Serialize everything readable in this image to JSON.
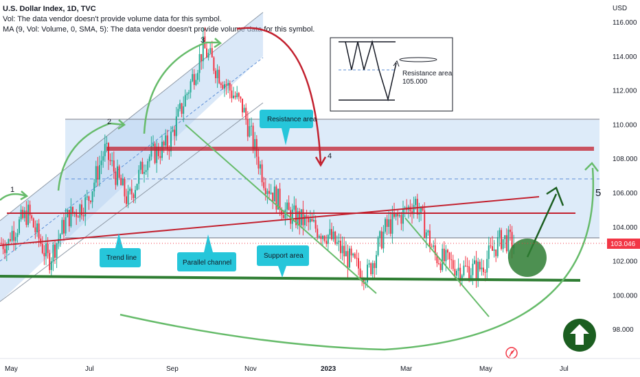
{
  "header": {
    "title": "U.S. Dollar Index, 1D, TVC",
    "volume_note": "Vol: The data vendor doesn't provide volume data for this symbol.",
    "ma_note": "MA (9, Vol: Volume, 0, SMA, 5): The data vendor doesn't provide volume data for this symbol."
  },
  "price_axis": {
    "currency": "USD",
    "ticks": [
      "116.000",
      "114.000",
      "112.000",
      "110.000",
      "108.000",
      "106.000",
      "104.000",
      "102.000",
      "100.000",
      "98.000"
    ],
    "last_price": "103.046",
    "last_price_color": "#f23645"
  },
  "time_axis": {
    "labels": [
      "May",
      "Jul",
      "Sep",
      "Nov",
      "2023",
      "Mar",
      "May",
      "Jul"
    ]
  },
  "annotations": {
    "waves": [
      "1",
      "2",
      "3",
      "4",
      "5"
    ],
    "resistance_callout": "Resistance area",
    "trend_line_callout": "Trend line",
    "parallel_channel_callout": "Parallel channel",
    "support_callout": "Support area",
    "inset_label_line1": "Resistance area",
    "inset_label_line2": "105.000"
  },
  "colors": {
    "bull": "#22ab94",
    "bear": "#f23645",
    "zone": "#cfe2f6",
    "callout": "#26c6da",
    "arrow_green": "#4caf50",
    "arrow_red": "#c2202e"
  },
  "icons": {
    "up_circle": "arrow-up-circle-icon",
    "logo": "tradingview-logo-icon"
  },
  "chart_data": {
    "type": "candlestick",
    "title": "U.S. Dollar Index, 1D, TVC",
    "xlabel": "",
    "ylabel": "",
    "ylim": [
      96.0,
      117.5
    ],
    "x": [
      "2022-05-02",
      "2022-05-16",
      "2022-06-01",
      "2022-06-15",
      "2022-07-01",
      "2022-07-14",
      "2022-08-01",
      "2022-08-15",
      "2022-09-01",
      "2022-09-28",
      "2022-10-14",
      "2022-10-28",
      "2022-11-14",
      "2022-12-01",
      "2022-12-15",
      "2023-01-02",
      "2023-01-20",
      "2023-02-01",
      "2023-02-15",
      "2023-03-01",
      "2023-03-10",
      "2023-03-25",
      "2023-04-14",
      "2023-04-28",
      "2023-05-15",
      "2023-05-25"
    ],
    "values": [
      103.5,
      104.8,
      102.0,
      104.5,
      105.5,
      108.5,
      105.5,
      108.0,
      108.8,
      114.5,
      112.5,
      111.0,
      106.7,
      104.8,
      104.3,
      103.5,
      101.9,
      101.2,
      103.9,
      104.8,
      105.5,
      102.3,
      101.5,
      101.5,
      103.3,
      103.046
    ],
    "support_level": 101.0,
    "resistance_level": 108.5,
    "marked_wave_levels": [
      104.8,
      108.5,
      114.8,
      107.8,
      106.0
    ],
    "legend": "none",
    "grid": false
  }
}
